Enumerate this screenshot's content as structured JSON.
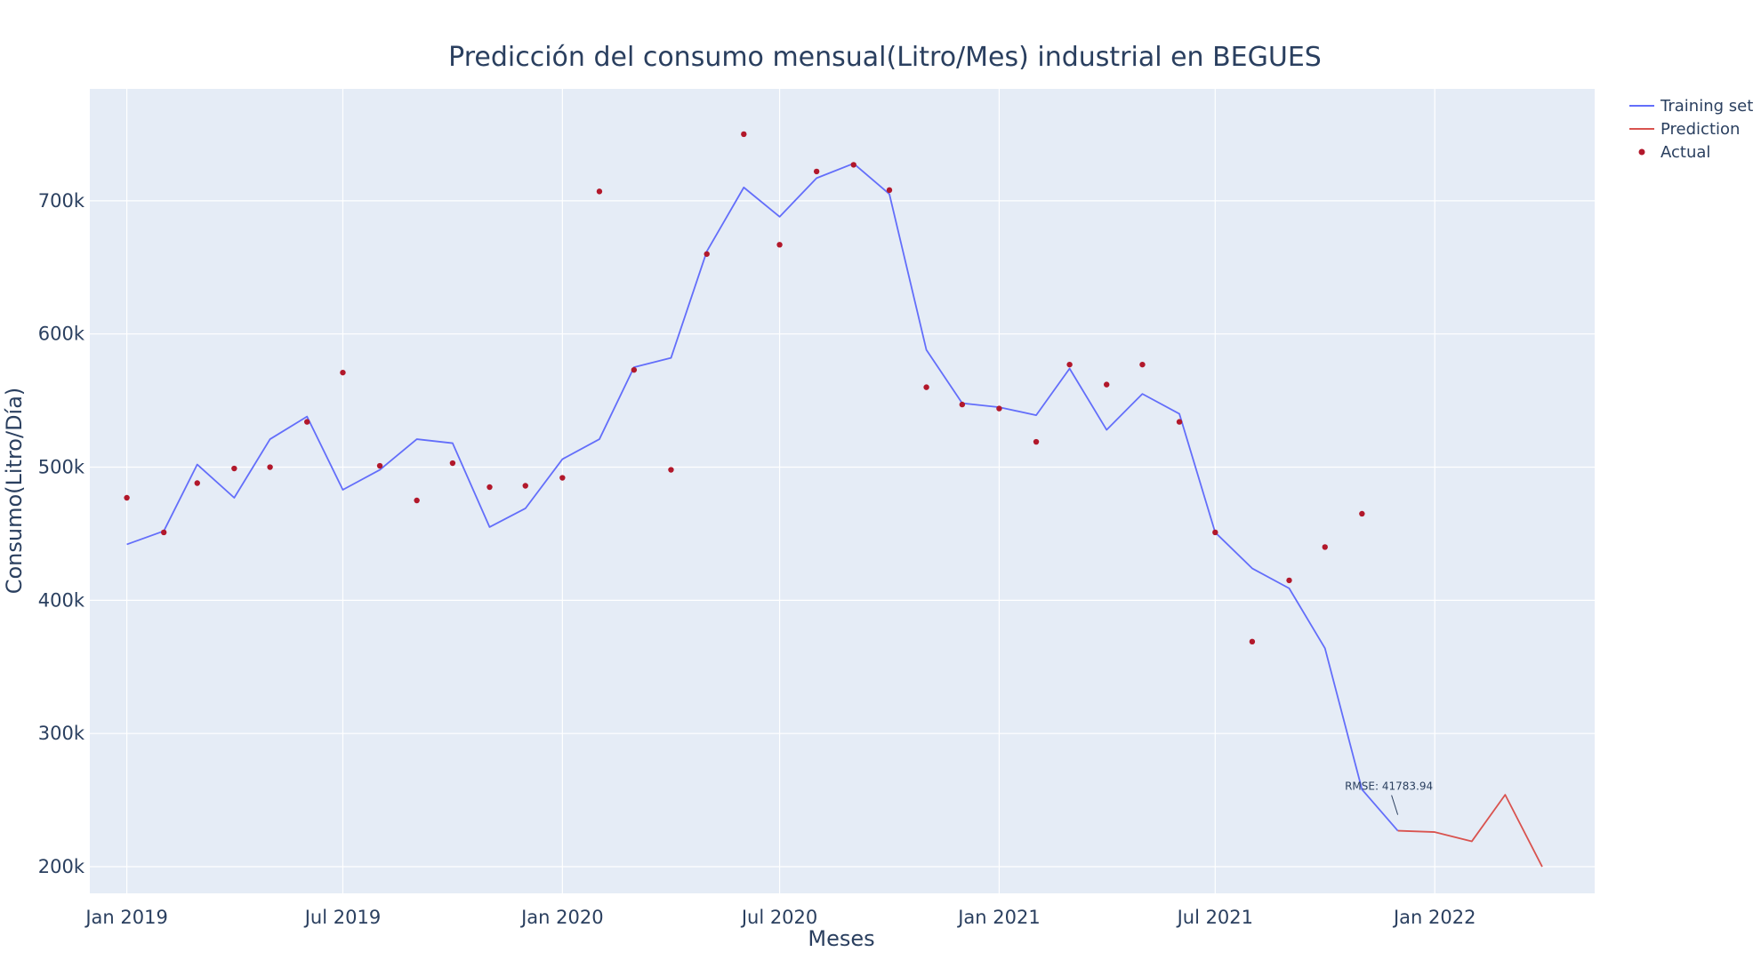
{
  "chart_data": {
    "type": "line",
    "title": "Predicción del consumo mensual(Litro/Mes) industrial en BEGUES",
    "xlabel": "Meses",
    "ylabel": "Consumo(Litro/Día)",
    "x_range": [
      "2018-12-01",
      "2022-05-15"
    ],
    "ylim": [
      180000,
      784000
    ],
    "x_ticks": [
      {
        "date": "2019-01-01",
        "label": "Jan 2019"
      },
      {
        "date": "2019-07-01",
        "label": "Jul 2019"
      },
      {
        "date": "2020-01-01",
        "label": "Jan 2020"
      },
      {
        "date": "2020-07-01",
        "label": "Jul 2020"
      },
      {
        "date": "2021-01-01",
        "label": "Jan 2021"
      },
      {
        "date": "2021-07-01",
        "label": "Jul 2021"
      },
      {
        "date": "2022-01-01",
        "label": "Jan 2022"
      }
    ],
    "y_ticks": [
      {
        "value": 200000,
        "label": "200k"
      },
      {
        "value": 300000,
        "label": "300k"
      },
      {
        "value": 400000,
        "label": "400k"
      },
      {
        "value": 500000,
        "label": "500k"
      },
      {
        "value": 600000,
        "label": "600k"
      },
      {
        "value": 700000,
        "label": "700k"
      }
    ],
    "grid": true,
    "legend_position": "top-right",
    "series": [
      {
        "name": "Training set",
        "kind": "line",
        "color": "#636efa",
        "points": [
          [
            "2019-01-01",
            442000
          ],
          [
            "2019-02-01",
            452000
          ],
          [
            "2019-03-01",
            502000
          ],
          [
            "2019-04-01",
            477000
          ],
          [
            "2019-05-01",
            521000
          ],
          [
            "2019-06-01",
            538000
          ],
          [
            "2019-07-01",
            483000
          ],
          [
            "2019-08-01",
            498000
          ],
          [
            "2019-09-01",
            521000
          ],
          [
            "2019-10-01",
            518000
          ],
          [
            "2019-11-01",
            455000
          ],
          [
            "2019-12-01",
            469000
          ],
          [
            "2020-01-01",
            506000
          ],
          [
            "2020-02-01",
            521000
          ],
          [
            "2020-03-01",
            575000
          ],
          [
            "2020-04-01",
            582000
          ],
          [
            "2020-05-01",
            662000
          ],
          [
            "2020-06-01",
            710000
          ],
          [
            "2020-07-01",
            688000
          ],
          [
            "2020-08-01",
            717000
          ],
          [
            "2020-09-01",
            728000
          ],
          [
            "2020-10-01",
            705000
          ],
          [
            "2020-11-01",
            588000
          ],
          [
            "2020-12-01",
            548000
          ],
          [
            "2021-01-01",
            545000
          ],
          [
            "2021-02-01",
            539000
          ],
          [
            "2021-03-01",
            574000
          ],
          [
            "2021-04-01",
            528000
          ],
          [
            "2021-05-01",
            555000
          ],
          [
            "2021-06-01",
            540000
          ],
          [
            "2021-07-01",
            451000
          ],
          [
            "2021-08-01",
            424000
          ],
          [
            "2021-09-01",
            409000
          ],
          [
            "2021-10-01",
            364000
          ],
          [
            "2021-11-01",
            258000
          ],
          [
            "2021-12-01",
            227000
          ]
        ]
      },
      {
        "name": "Prediction",
        "kind": "line",
        "color": "#d9534f",
        "points": [
          [
            "2021-12-01",
            227000
          ],
          [
            "2022-01-01",
            226000
          ],
          [
            "2022-02-01",
            219000
          ],
          [
            "2022-03-01",
            254000
          ],
          [
            "2022-04-01",
            200000
          ]
        ]
      },
      {
        "name": "Actual",
        "kind": "markers",
        "color": "#b2182b",
        "points": [
          [
            "2019-01-01",
            477000
          ],
          [
            "2019-02-01",
            451000
          ],
          [
            "2019-03-01",
            488000
          ],
          [
            "2019-04-01",
            499000
          ],
          [
            "2019-05-01",
            500000
          ],
          [
            "2019-06-01",
            534000
          ],
          [
            "2019-07-01",
            571000
          ],
          [
            "2019-08-01",
            501000
          ],
          [
            "2019-09-01",
            475000
          ],
          [
            "2019-10-01",
            503000
          ],
          [
            "2019-11-01",
            485000
          ],
          [
            "2019-12-01",
            486000
          ],
          [
            "2020-01-01",
            492000
          ],
          [
            "2020-02-01",
            707000
          ],
          [
            "2020-03-01",
            573000
          ],
          [
            "2020-04-01",
            498000
          ],
          [
            "2020-05-01",
            660000
          ],
          [
            "2020-06-01",
            750000
          ],
          [
            "2020-07-01",
            667000
          ],
          [
            "2020-08-01",
            722000
          ],
          [
            "2020-09-01",
            727000
          ],
          [
            "2020-10-01",
            708000
          ],
          [
            "2020-11-01",
            560000
          ],
          [
            "2020-12-01",
            547000
          ],
          [
            "2021-01-01",
            544000
          ],
          [
            "2021-02-01",
            519000
          ],
          [
            "2021-03-01",
            577000
          ],
          [
            "2021-04-01",
            562000
          ],
          [
            "2021-05-01",
            577000
          ],
          [
            "2021-06-01",
            534000
          ],
          [
            "2021-07-01",
            451000
          ],
          [
            "2021-08-01",
            369000
          ],
          [
            "2021-09-01",
            415000
          ],
          [
            "2021-10-01",
            440000
          ],
          [
            "2021-11-01",
            465000
          ]
        ]
      }
    ],
    "annotations": [
      {
        "text": "RMSE: 41783.94",
        "date": "2021-12-01",
        "value": 239000
      }
    ]
  }
}
